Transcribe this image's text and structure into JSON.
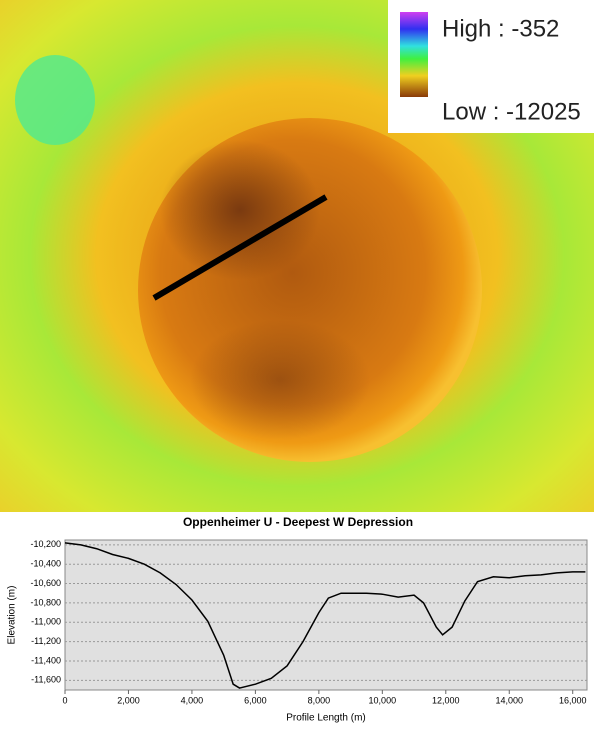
{
  "map": {
    "legend": {
      "high": "High : -352",
      "low": "Low : -12025"
    }
  },
  "chart_data": {
    "type": "line",
    "title": "Oppenheimer U - Deepest W Depression",
    "x_label": "Profile Length (m)",
    "y_label": "Elevation (m)",
    "grid": true,
    "xlim": [
      0,
      16450
    ],
    "ylim": [
      -11700,
      -10150
    ],
    "xticks": [
      0,
      {
        "value": 2000,
        "label": "2,000"
      },
      {
        "value": 4000,
        "label": "4,000"
      },
      {
        "value": 6000,
        "label": "6,000"
      },
      {
        "value": 8000,
        "label": "8,000"
      },
      {
        "value": 10000,
        "label": "10,000"
      },
      {
        "value": 12000,
        "label": "12,000"
      },
      {
        "value": 14000,
        "label": "14,000"
      },
      {
        "value": 16000,
        "label": "16,000"
      }
    ],
    "yticks": [
      {
        "value": -10200,
        "label": "-10,200"
      },
      {
        "value": -10400,
        "label": "-10,400"
      },
      {
        "value": -10600,
        "label": "-10,600"
      },
      {
        "value": -10800,
        "label": "-10,800"
      },
      {
        "value": -11000,
        "label": "-11,000"
      },
      {
        "value": -11200,
        "label": "-11,200"
      },
      {
        "value": -11400,
        "label": "-11,400"
      },
      {
        "value": -11600,
        "label": "-11,600"
      }
    ],
    "x": [
      0,
      500,
      1000,
      1500,
      2000,
      2500,
      3000,
      3500,
      4000,
      4500,
      5000,
      5300,
      5500,
      6000,
      6500,
      7000,
      7500,
      8000,
      8300,
      8700,
      9500,
      10000,
      10500,
      11000,
      11300,
      11700,
      11900,
      12200,
      12600,
      13000,
      13500,
      14000,
      14500,
      15000,
      15500,
      16000,
      16400
    ],
    "series": [
      {
        "color": "#000000",
        "values": [
          -10180,
          -10200,
          -10240,
          -10300,
          -10340,
          -10400,
          -10490,
          -10610,
          -10770,
          -10990,
          -11340,
          -11640,
          -11680,
          -11640,
          -11580,
          -11450,
          -11200,
          -10900,
          -10750,
          -10700,
          -10700,
          -10710,
          -10740,
          -10720,
          -10800,
          -11050,
          -11130,
          -11050,
          -10780,
          -10580,
          -10530,
          -10540,
          -10520,
          -10510,
          -10490,
          -10480,
          -10480
        ]
      }
    ]
  }
}
